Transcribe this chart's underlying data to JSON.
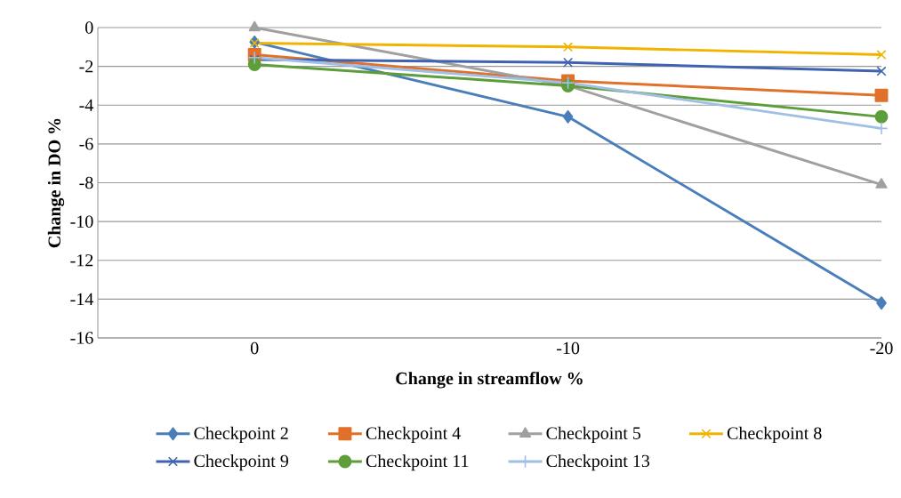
{
  "chart_data": {
    "type": "line",
    "xlabel": "Change in streamflow %",
    "ylabel": "Change in DO %",
    "categories": [
      "0",
      "-10",
      "-20"
    ],
    "ylim": [
      -16,
      0
    ],
    "yticks": [
      0,
      -2,
      -4,
      -6,
      -8,
      -10,
      -12,
      -14,
      -16
    ],
    "grid": "y",
    "legend": "bottom",
    "line_style": "solid",
    "series": [
      {
        "name": "Checkpoint 2",
        "color": "#4a7ebb",
        "marker": "diamond",
        "values": [
          -0.75,
          -4.6,
          -14.2
        ]
      },
      {
        "name": "Checkpoint 4",
        "color": "#e0702a",
        "marker": "square",
        "values": [
          -1.4,
          -2.75,
          -3.5
        ]
      },
      {
        "name": "Checkpoint 5",
        "color": "#a0a0a0",
        "marker": "triangle",
        "values": [
          0,
          -3.0,
          -8.1
        ]
      },
      {
        "name": "Checkpoint 8",
        "color": "#f0b400",
        "marker": "cross",
        "values": [
          -0.8,
          -1.0,
          -1.4
        ]
      },
      {
        "name": "Checkpoint 9",
        "color": "#3f63b0",
        "marker": "cross",
        "values": [
          -1.65,
          -1.8,
          -2.25
        ]
      },
      {
        "name": "Checkpoint 11",
        "color": "#5e9e3a",
        "marker": "circle",
        "values": [
          -1.9,
          -3.0,
          -4.6
        ]
      },
      {
        "name": "Checkpoint 13",
        "color": "#9fbfe5",
        "marker": "plus",
        "values": [
          -1.55,
          -2.85,
          -5.2
        ]
      }
    ]
  }
}
